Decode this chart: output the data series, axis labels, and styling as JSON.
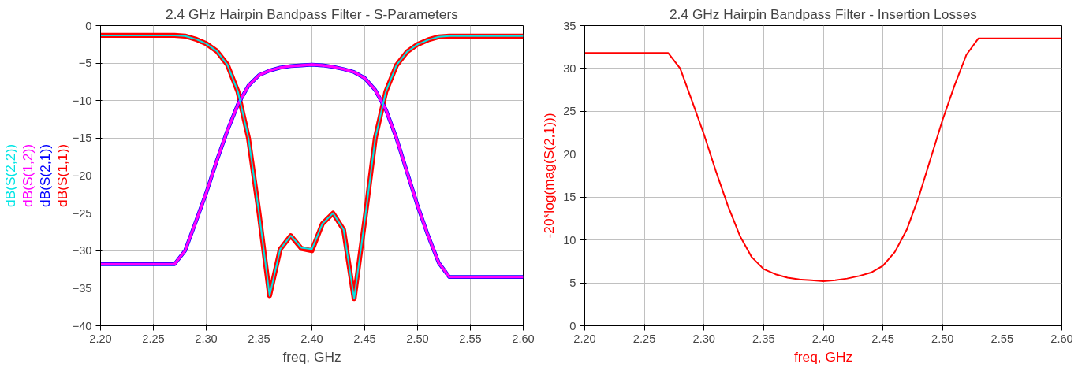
{
  "chart_data": [
    {
      "type": "line",
      "title": "2.4 GHz Hairpin Bandpass Filter - S-Parameters",
      "xlabel": "freq, GHz",
      "x": [
        2.2,
        2.21,
        2.22,
        2.23,
        2.24,
        2.25,
        2.26,
        2.27,
        2.28,
        2.29,
        2.3,
        2.31,
        2.32,
        2.33,
        2.34,
        2.35,
        2.36,
        2.37,
        2.38,
        2.39,
        2.4,
        2.41,
        2.42,
        2.43,
        2.44,
        2.45,
        2.46,
        2.47,
        2.48,
        2.49,
        2.5,
        2.51,
        2.52,
        2.53,
        2.54,
        2.55,
        2.56,
        2.57,
        2.58,
        2.59,
        2.6
      ],
      "series": [
        {
          "name": "dB(S(2,2))",
          "color": "#00e5e5",
          "values": [
            -1.3,
            -1.3,
            -1.3,
            -1.3,
            -1.3,
            -1.3,
            -1.3,
            -1.3,
            -1.4,
            -1.8,
            -2.4,
            -3.4,
            -5.2,
            -8.8,
            -15,
            -25,
            -36,
            -29.8,
            -28,
            -29.6,
            -29.8,
            -26.4,
            -25,
            -27.2,
            -36.4,
            -26,
            -15,
            -8.8,
            -5.3,
            -3.5,
            -2.5,
            -1.9,
            -1.5,
            -1.4,
            -1.4,
            -1.4,
            -1.4,
            -1.4,
            -1.4,
            -1.4,
            -1.4
          ]
        },
        {
          "name": "dB(S(1,2))",
          "color": "#ff00ff",
          "values": [
            -31.8,
            -31.8,
            -31.8,
            -31.8,
            -31.8,
            -31.8,
            -31.8,
            -31.8,
            -30,
            -26.2,
            -22.3,
            -18,
            -14,
            -10.5,
            -8,
            -6.6,
            -6.0,
            -5.6,
            -5.4,
            -5.3,
            -5.2,
            -5.3,
            -5.5,
            -5.8,
            -6.2,
            -7.0,
            -8.6,
            -11.2,
            -15,
            -19.5,
            -24,
            -28,
            -31.6,
            -33.5,
            -33.5,
            -33.5,
            -33.5,
            -33.5,
            -33.5,
            -33.5,
            -33.5
          ]
        },
        {
          "name": "dB(S(2,1))",
          "color": "#0000ff",
          "values": [
            -31.8,
            -31.8,
            -31.8,
            -31.8,
            -31.8,
            -31.8,
            -31.8,
            -31.8,
            -30,
            -26.2,
            -22.3,
            -18,
            -14,
            -10.5,
            -8,
            -6.6,
            -6.0,
            -5.6,
            -5.4,
            -5.3,
            -5.2,
            -5.3,
            -5.5,
            -5.8,
            -6.2,
            -7.0,
            -8.6,
            -11.2,
            -15,
            -19.5,
            -24,
            -28,
            -31.6,
            -33.5,
            -33.5,
            -33.5,
            -33.5,
            -33.5,
            -33.5,
            -33.5,
            -33.5
          ]
        },
        {
          "name": "dB(S(1,1))",
          "color": "#ff0000",
          "values": [
            -1.3,
            -1.3,
            -1.3,
            -1.3,
            -1.3,
            -1.3,
            -1.3,
            -1.3,
            -1.4,
            -1.8,
            -2.4,
            -3.4,
            -5.2,
            -8.8,
            -15,
            -25,
            -36,
            -29.8,
            -28,
            -29.7,
            -30,
            -26.4,
            -25,
            -27.2,
            -36.4,
            -26,
            -15,
            -8.8,
            -5.3,
            -3.5,
            -2.5,
            -1.9,
            -1.5,
            -1.4,
            -1.4,
            -1.4,
            -1.4,
            -1.4,
            -1.4,
            -1.4,
            -1.4
          ]
        }
      ],
      "xlim": [
        2.2,
        2.6
      ],
      "xticks": [
        {
          "value": 2.2,
          "label": "2.20"
        },
        {
          "value": 2.25,
          "label": "2.25"
        },
        {
          "value": 2.3,
          "label": "2.30"
        },
        {
          "value": 2.35,
          "label": "2.35"
        },
        {
          "value": 2.4,
          "label": "2.40"
        },
        {
          "value": 2.45,
          "label": "2.45"
        },
        {
          "value": 2.5,
          "label": "2.50"
        },
        {
          "value": 2.55,
          "label": "2.55"
        },
        {
          "value": 2.6,
          "label": "2.60"
        }
      ],
      "ylim": [
        -40,
        0
      ],
      "yticks": [
        -40,
        -35,
        -30,
        -25,
        -20,
        -15,
        -10,
        -5,
        0
      ],
      "grid": true,
      "marker": "none",
      "line_style": "solid"
    },
    {
      "type": "line",
      "title": "2.4 GHz Hairpin Bandpass Filter - Insertion Losses",
      "xlabel": "freq, GHz",
      "ylabel": "-20*log(mag(S(2,1)))",
      "x": [
        2.2,
        2.21,
        2.22,
        2.23,
        2.24,
        2.25,
        2.26,
        2.27,
        2.28,
        2.29,
        2.3,
        2.31,
        2.32,
        2.33,
        2.34,
        2.35,
        2.36,
        2.37,
        2.38,
        2.39,
        2.4,
        2.41,
        2.42,
        2.43,
        2.44,
        2.45,
        2.46,
        2.47,
        2.48,
        2.49,
        2.5,
        2.51,
        2.52,
        2.53,
        2.54,
        2.55,
        2.56,
        2.57,
        2.58,
        2.59,
        2.6
      ],
      "series": [
        {
          "color": "#ff0000",
          "values": [
            31.8,
            31.8,
            31.8,
            31.8,
            31.8,
            31.8,
            31.8,
            31.8,
            30,
            26.2,
            22.3,
            18,
            14,
            10.5,
            8,
            6.6,
            6.0,
            5.6,
            5.4,
            5.3,
            5.2,
            5.3,
            5.5,
            5.8,
            6.2,
            7.0,
            8.6,
            11.2,
            15,
            19.5,
            24,
            28,
            31.6,
            33.5,
            33.5,
            33.5,
            33.5,
            33.5,
            33.5,
            33.5,
            33.5
          ]
        }
      ],
      "xlim": [
        2.2,
        2.6
      ],
      "xticks": [
        {
          "value": 2.2,
          "label": "2.20"
        },
        {
          "value": 2.25,
          "label": "2.25"
        },
        {
          "value": 2.3,
          "label": "2.30"
        },
        {
          "value": 2.35,
          "label": "2.35"
        },
        {
          "value": 2.4,
          "label": "2.40"
        },
        {
          "value": 2.45,
          "label": "2.45"
        },
        {
          "value": 2.5,
          "label": "2.50"
        },
        {
          "value": 2.55,
          "label": "2.55"
        },
        {
          "value": 2.6,
          "label": "2.60"
        }
      ],
      "ylim": [
        0,
        35
      ],
      "yticks": [
        0,
        5,
        10,
        15,
        20,
        25,
        30,
        35
      ],
      "grid": true,
      "marker": "none",
      "line_style": "solid"
    }
  ]
}
